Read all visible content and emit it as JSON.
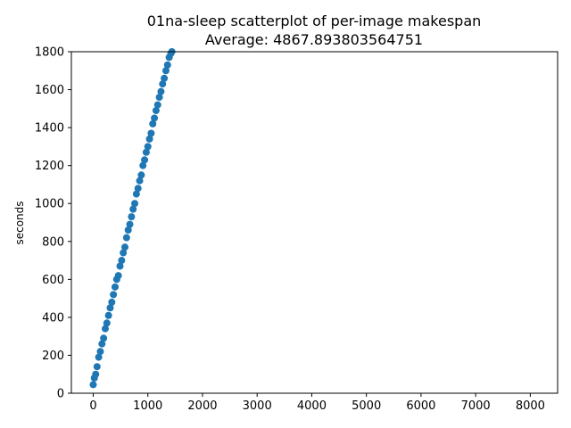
{
  "chart_data": {
    "type": "scatter",
    "title": "01na-sleep scatterplot of per-image makespan",
    "subtitle": "Average: 4867.893803564751",
    "xlabel": "",
    "ylabel": "seconds",
    "xlim": [
      -400,
      8500
    ],
    "ylim": [
      0,
      1800
    ],
    "xticks": [
      0,
      1000,
      2000,
      3000,
      4000,
      5000,
      6000,
      7000,
      8000
    ],
    "yticks": [
      0,
      200,
      400,
      600,
      800,
      1000,
      1200,
      1400,
      1600,
      1800
    ],
    "grid": false,
    "point_color": "#1f77b4",
    "series": [
      {
        "x": [
          0,
          20,
          45,
          70,
          100,
          130,
          160,
          190,
          220,
          250,
          280,
          310,
          340,
          370,
          400,
          430,
          460,
          490,
          520,
          550,
          580,
          610,
          640,
          670,
          700,
          730,
          760,
          790,
          820,
          850,
          880,
          910,
          940,
          970,
          1000,
          1030,
          1060,
          1090,
          1120,
          1150,
          1180,
          1210,
          1240,
          1270,
          1300,
          1330,
          1360,
          1390,
          1420,
          1440
        ],
        "y": [
          45,
          80,
          100,
          140,
          190,
          220,
          260,
          290,
          340,
          370,
          410,
          450,
          480,
          520,
          560,
          600,
          620,
          670,
          700,
          740,
          770,
          820,
          860,
          890,
          930,
          970,
          1000,
          1050,
          1080,
          1120,
          1150,
          1200,
          1230,
          1270,
          1300,
          1340,
          1370,
          1420,
          1450,
          1490,
          1520,
          1560,
          1590,
          1630,
          1660,
          1700,
          1730,
          1770,
          1790,
          1800
        ]
      }
    ]
  }
}
